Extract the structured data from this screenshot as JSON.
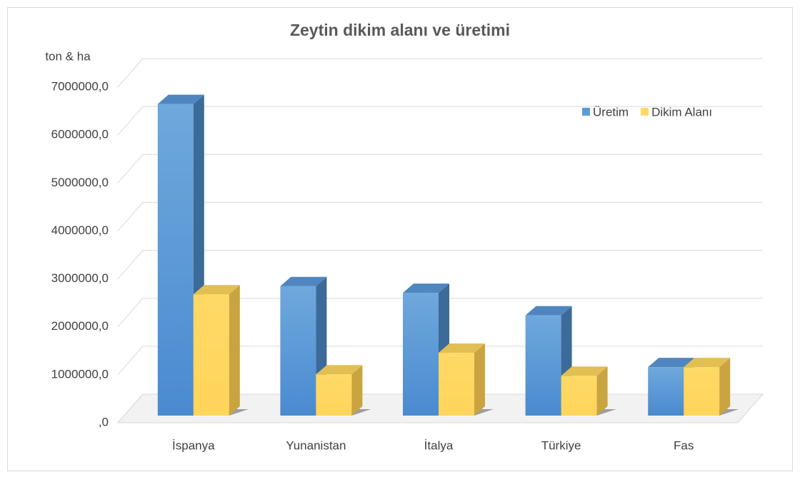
{
  "chart_data": {
    "type": "bar3d",
    "title": "Zeytin dikim alanı ve üretimi",
    "y_label": "ton & ha",
    "categories": [
      "İspanya",
      "Yunanistan",
      "İtalya",
      "Türkiye",
      "Fas"
    ],
    "series": [
      {
        "name": "Üretim",
        "color": "#5b9bd5",
        "values": [
          6500000,
          2700000,
          2560000,
          2090000,
          1010000
        ]
      },
      {
        "name": "Dikim Alanı",
        "color": "#ffd966",
        "values": [
          2530000,
          860000,
          1310000,
          830000,
          1010000
        ]
      }
    ],
    "ylim": [
      0,
      7000000
    ],
    "yticks": [
      {
        "value": 0,
        "label": ",0"
      },
      {
        "value": 1000000,
        "label": "1000000,0"
      },
      {
        "value": 2000000,
        "label": "2000000,0"
      },
      {
        "value": 3000000,
        "label": "3000000,0"
      },
      {
        "value": 4000000,
        "label": "4000000,0"
      },
      {
        "value": 5000000,
        "label": "5000000,0"
      },
      {
        "value": 6000000,
        "label": "6000000,0"
      },
      {
        "value": 7000000,
        "label": "7000000,0"
      }
    ],
    "grid": true,
    "legend": "top-right"
  }
}
